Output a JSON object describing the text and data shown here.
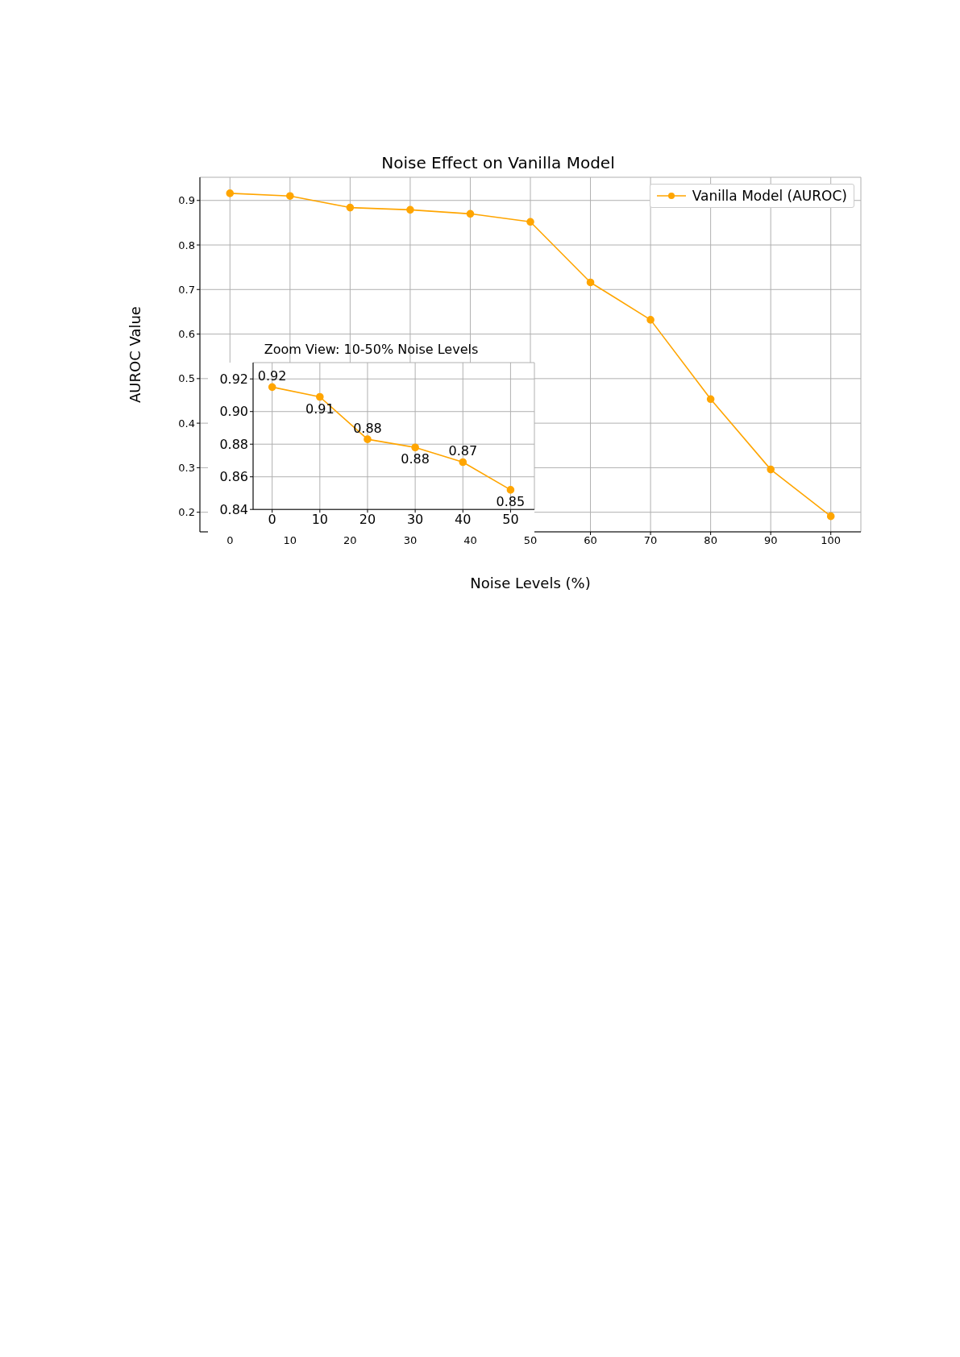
{
  "chart_data": [
    {
      "type": "line",
      "title": "Noise Effect on Vanilla Model",
      "xlabel": "Noise Levels (%)",
      "ylabel": "AUROC Value",
      "x": [
        0,
        10,
        20,
        30,
        40,
        50,
        60,
        70,
        80,
        90,
        100
      ],
      "series": [
        {
          "name": "Vanilla Model (AUROC)",
          "color": "#ffa500",
          "values": [
            0.916,
            0.91,
            0.884,
            0.879,
            0.87,
            0.852,
            0.716,
            0.632,
            0.454,
            0.296,
            0.191
          ]
        }
      ],
      "xlim": [
        -5,
        105
      ],
      "ylim": [
        0.156,
        0.952
      ],
      "xticks": [
        0,
        10,
        20,
        30,
        40,
        50,
        60,
        70,
        80,
        90,
        100
      ],
      "yticks": [
        0.2,
        0.3,
        0.4,
        0.5,
        0.6,
        0.7,
        0.8,
        0.9
      ],
      "grid": true,
      "legend": "top right",
      "marker": "circle",
      "line_style": "solid"
    },
    {
      "type": "line",
      "title": "Zoom View: 10-50% Noise Levels",
      "x": [
        0,
        10,
        20,
        30,
        40,
        50
      ],
      "series": [
        {
          "color": "#ffa500",
          "values": [
            0.915,
            0.909,
            0.883,
            0.878,
            0.869,
            0.852
          ],
          "value_labels": [
            "0.92",
            "0.91",
            "0.88",
            "0.88",
            "0.87",
            "0.85"
          ]
        }
      ],
      "xlim": [
        -4,
        55
      ],
      "ylim": [
        0.84,
        0.93
      ],
      "xticks": [
        0,
        10,
        20,
        30,
        40,
        50
      ],
      "yticks": [
        {
          "value": 0.84,
          "label": "0.84"
        },
        {
          "value": 0.86,
          "label": "0.86"
        },
        {
          "value": 0.88,
          "label": "0.88"
        },
        {
          "value": 0.9,
          "label": "0.90"
        },
        {
          "value": 0.92,
          "label": "0.92"
        }
      ],
      "grid": true,
      "marker": "circle",
      "line_style": "solid"
    }
  ]
}
